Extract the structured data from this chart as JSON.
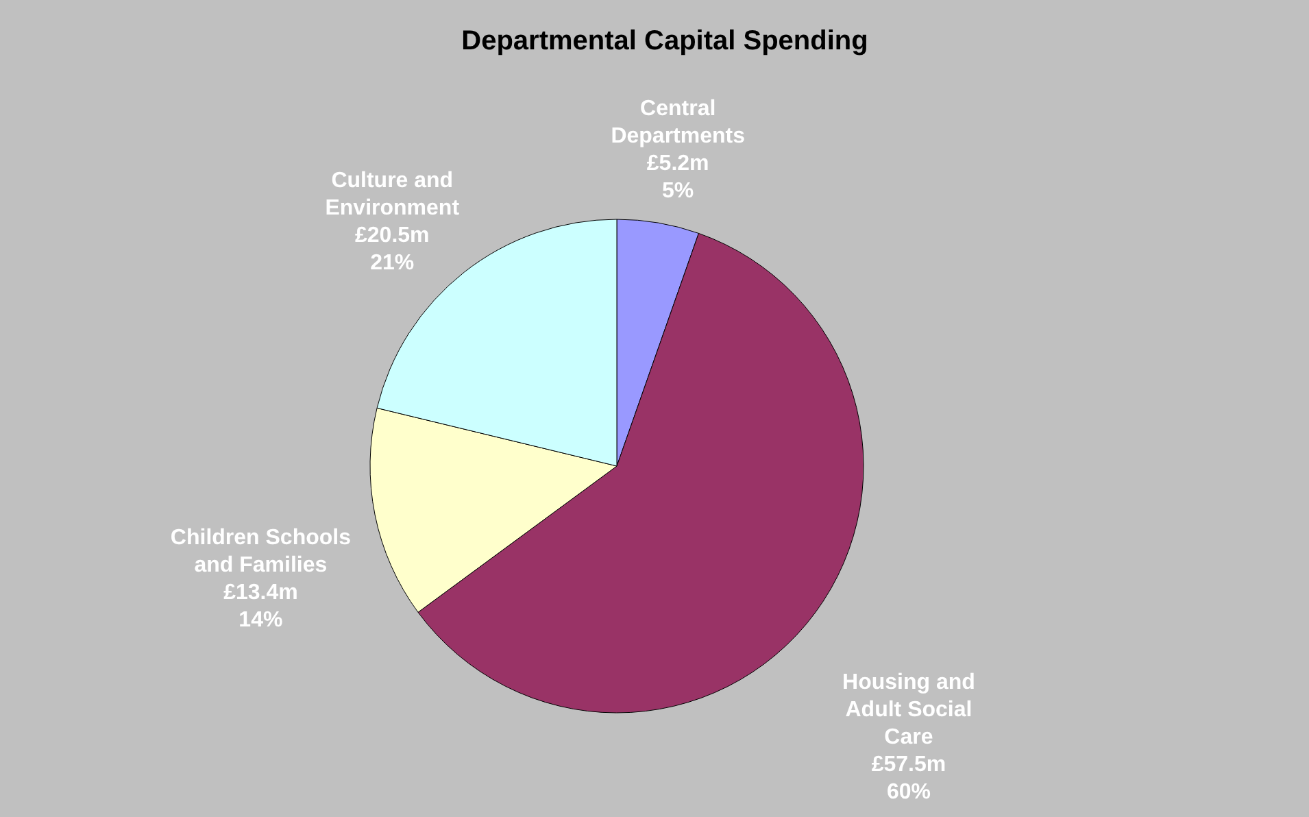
{
  "chart_data": {
    "type": "pie",
    "title": "Departmental Capital Spending",
    "categories": [
      "Central Departments",
      "Housing and Adult Social Care",
      "Children Schools and Families",
      "Culture and Environment"
    ],
    "values": [
      5.2,
      57.5,
      13.4,
      20.5
    ],
    "value_labels": [
      "£5.2m",
      "£57.5m",
      "£13.4m",
      "£20.5m"
    ],
    "annotations": [
      "5%",
      "60%",
      "14%",
      "21%"
    ],
    "colors": [
      "#9999ff",
      "#993366",
      "#ffffcc",
      "#ccffff"
    ]
  }
}
